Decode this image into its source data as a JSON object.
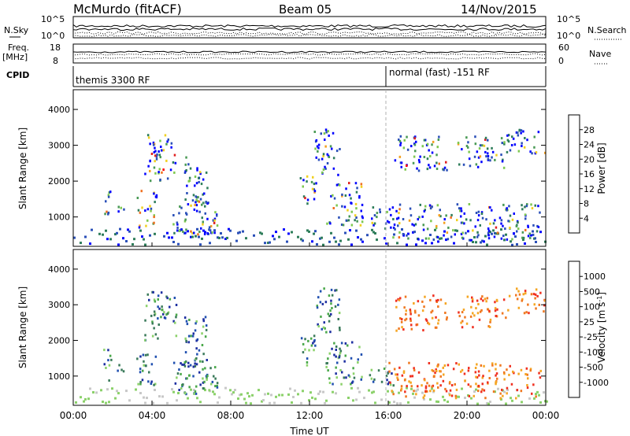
{
  "header": {
    "station": "McMurdo (fitACF)",
    "beam": "Beam 05",
    "date": "14/Nov/2015"
  },
  "side_labels": {
    "nsky": "N.Sky",
    "freq": "Freq.",
    "mhz": "[MHz]",
    "cpid": "CPID",
    "nsearch": "N.Search",
    "nave": "Nave"
  },
  "cpid_modes": {
    "left": "themis 3300 RF",
    "right": "normal (fast) -151 RF"
  },
  "colors": {
    "power": [
      "#0000ff",
      "#2a4fb8",
      "#2e7d5a",
      "#4a9a55",
      "#7ec850",
      "#f0d020",
      "#f4a020",
      "#f07020",
      "#e02020",
      "#ff0000"
    ],
    "velocity": [
      "#ff0000",
      "#f03020",
      "#f07820",
      "#f5a623",
      "#f5c070",
      "#c8c8c8",
      "#8bd16a",
      "#4aa84a",
      "#3a7a5a",
      "#2050b0",
      "#1c2ea0"
    ],
    "noise_line": "#000000"
  },
  "chart_data": [
    {
      "type": "line",
      "name": "noise",
      "y_ticks_left": [
        "10^5",
        "10^0"
      ],
      "y_ticks_right": [
        "10^5",
        "10^0"
      ],
      "legend_left": "N.Sky",
      "legend_right": "N.Search"
    },
    {
      "type": "line",
      "name": "freq_nave",
      "y_ticks_left": [
        "18",
        "8"
      ],
      "y_ticks_right": [
        "60",
        "0"
      ],
      "legend_left": "Freq. [MHz]",
      "legend_right": "Nave"
    },
    {
      "type": "heatmap",
      "name": "power",
      "ylabel": "Slant Range [km]",
      "ylim": [
        180,
        4550
      ],
      "yticks": [
        1000,
        2000,
        3000,
        4000
      ],
      "xlim": [
        0,
        24
      ],
      "colorbar_label": "Power [dB]",
      "colorbar_ticks": [
        "4",
        "8",
        "12",
        "16",
        "20",
        "24",
        "28"
      ],
      "clim": [
        0,
        32
      ],
      "ionospheric_echo_regions": [
        {
          "t0": 1.5,
          "t1": 1.9,
          "r0": 800,
          "r1": 1800
        },
        {
          "t0": 2.2,
          "t1": 2.6,
          "r0": 900,
          "r1": 1400
        },
        {
          "t0": 3.2,
          "t1": 4.2,
          "r0": 700,
          "r1": 1800
        },
        {
          "t0": 3.6,
          "t1": 5.2,
          "r0": 2000,
          "r1": 3400
        },
        {
          "t0": 5.0,
          "t1": 7.2,
          "r0": 500,
          "r1": 1500
        },
        {
          "t0": 5.6,
          "t1": 6.8,
          "r0": 1100,
          "r1": 2700
        },
        {
          "t0": 6.5,
          "t1": 7.3,
          "r0": 600,
          "r1": 1100
        },
        {
          "t0": 11.5,
          "t1": 12.3,
          "r0": 1200,
          "r1": 2200
        },
        {
          "t0": 12.2,
          "t1": 13.5,
          "r0": 2200,
          "r1": 3500
        },
        {
          "t0": 12.8,
          "t1": 14.7,
          "r0": 800,
          "r1": 2000
        },
        {
          "t0": 15.0,
          "t1": 16.3,
          "r0": 700,
          "r1": 1300
        },
        {
          "t0": 16.0,
          "t1": 23.7,
          "r0": 400,
          "r1": 1400
        },
        {
          "t0": 16.3,
          "t1": 19.0,
          "r0": 2300,
          "r1": 3300
        },
        {
          "t0": 19.5,
          "t1": 22.0,
          "r0": 2400,
          "r1": 3300
        },
        {
          "t0": 22.0,
          "t1": 24.0,
          "r0": 2800,
          "r1": 3500
        }
      ]
    },
    {
      "type": "heatmap",
      "name": "velocity",
      "ylabel": "Slant Range [km]",
      "ylim": [
        180,
        4550
      ],
      "yticks": [
        1000,
        2000,
        3000,
        4000
      ],
      "xlim": [
        0,
        24
      ],
      "colorbar_label": "Velocity [m s^-1]",
      "colorbar_ticks": [
        "-1000",
        "-500",
        "-100",
        "-25",
        "25",
        "100",
        "500",
        "1000"
      ],
      "xticks": [
        "00:00",
        "04:00",
        "08:00",
        "12:00",
        "16:00",
        "20:00",
        "00:00"
      ],
      "xlabel": "Time UT"
    }
  ]
}
